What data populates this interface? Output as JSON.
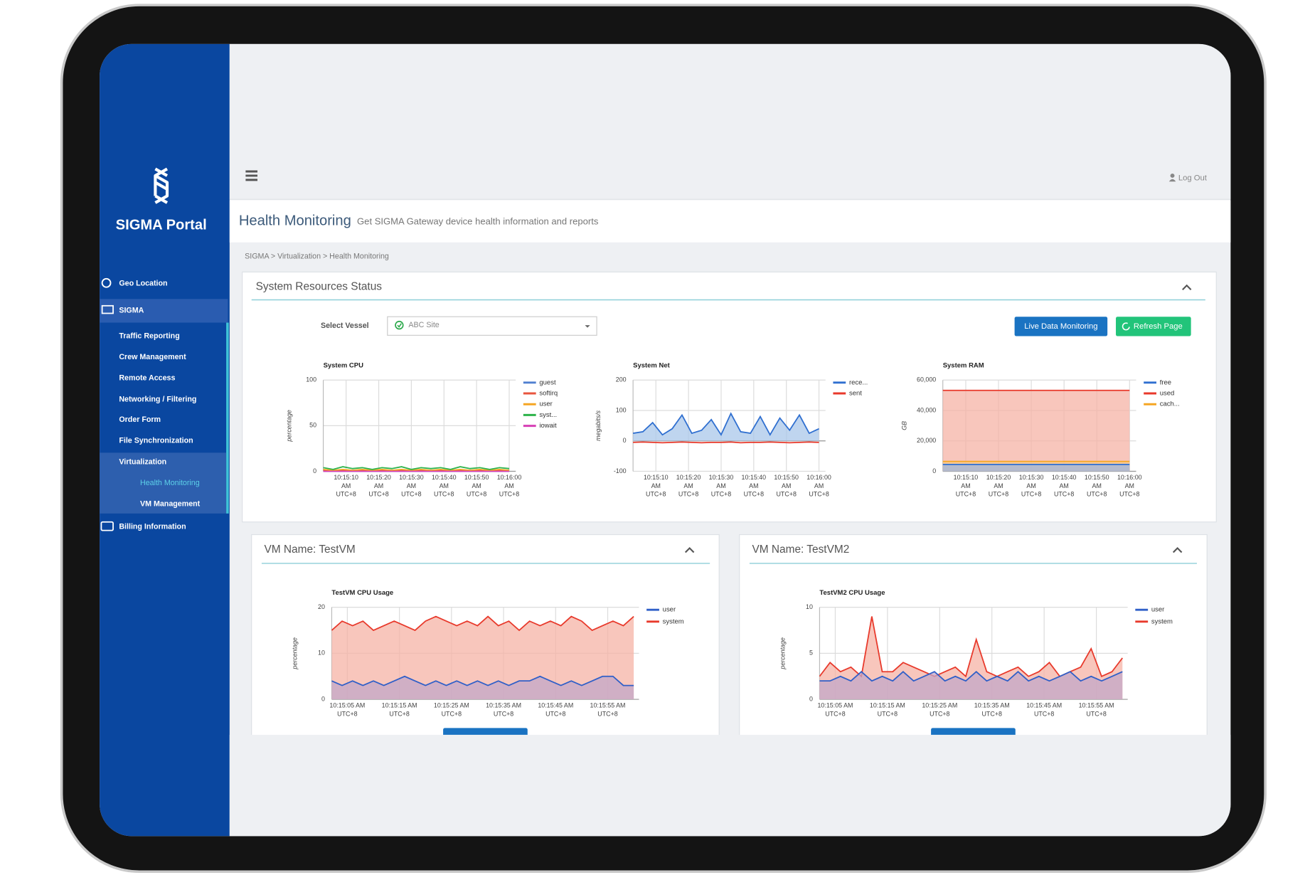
{
  "sidebar": {
    "brand": "SIGMA Portal",
    "menu": [
      "Geo Location",
      "SIGMA",
      "Traffic Reporting",
      "Crew Management",
      "Remote Access",
      "Networking / Filtering",
      "Order Form",
      "File Synchronization",
      "Virtualization",
      "Health Monitoring",
      "VM Management",
      "Billing Information"
    ]
  },
  "header": {
    "logout": "Log Out"
  },
  "page": {
    "title": "Health Monitoring",
    "subtitle": "Get SIGMA Gateway device health information and reports",
    "breadcrumb": "SIGMA > Virtualization > Health Monitoring"
  },
  "resources_panel": {
    "title": "System Resources Status",
    "select_label": "Select Vessel",
    "select_value": "ABC Site",
    "buttons": [
      "Live Data Monitoring",
      "Refresh Page"
    ]
  },
  "vm_panels": [
    {
      "title": "VM Name: TestVM"
    },
    {
      "title": "VM Name: TestVM2"
    }
  ],
  "charts": [
    {
      "type": "line",
      "title": "System CPU",
      "y_label": "percentage",
      "x": [
        0,
        3,
        6,
        9,
        12,
        15,
        18,
        21,
        24,
        27,
        30,
        33,
        36,
        39,
        42,
        45,
        48,
        51,
        54,
        57
      ],
      "xlim": [
        0,
        59
      ],
      "xticks": [
        {
          "value": 7,
          "label": "10:15:10\nAM\nUTC+8"
        },
        {
          "value": 17,
          "label": "10:15:20\nAM\nUTC+8"
        },
        {
          "value": 27,
          "label": "10:15:30\nAM\nUTC+8"
        },
        {
          "value": 37,
          "label": "10:15:40\nAM\nUTC+8"
        },
        {
          "value": 47,
          "label": "10:15:50\nAM\nUTC+8"
        },
        {
          "value": 57,
          "label": "10:16:00\nAM\nUTC+8"
        }
      ],
      "ylim": [
        0,
        100
      ],
      "yticks": [
        0,
        50,
        100
      ],
      "grid": true,
      "series": [
        {
          "name": "guest",
          "color": "#4f7fd0",
          "values": [
            0,
            0,
            0,
            0,
            0,
            0,
            0,
            0,
            0,
            0,
            0,
            0,
            0,
            0,
            0,
            0,
            0,
            0,
            0,
            0
          ]
        },
        {
          "name": "softirq",
          "color": "#e8553e",
          "values": [
            1,
            1,
            1,
            1,
            1,
            1,
            1,
            1,
            1,
            1,
            1,
            1,
            1,
            1,
            1,
            1,
            1,
            1,
            1,
            1
          ]
        },
        {
          "name": "user",
          "color": "#f5a623",
          "values": [
            2,
            1,
            2,
            1,
            2,
            1,
            2,
            1,
            2,
            1,
            2,
            1,
            2,
            1,
            2,
            1,
            2,
            1,
            2,
            1
          ]
        },
        {
          "name": "syst...",
          "color": "#2db34a",
          "values": [
            4,
            2,
            5,
            3,
            4,
            2,
            4,
            3,
            5,
            2,
            4,
            3,
            4,
            2,
            5,
            3,
            4,
            2,
            4,
            3
          ]
        },
        {
          "name": "iowait",
          "color": "#d63fb5",
          "values": [
            0,
            0,
            0,
            0,
            0,
            0,
            0,
            0,
            0,
            0,
            0,
            0,
            0,
            0,
            0,
            0,
            0,
            0,
            0,
            0
          ]
        }
      ]
    },
    {
      "type": "area",
      "title": "System Net",
      "y_label": "megabits/s",
      "x": [
        0,
        3,
        6,
        9,
        12,
        15,
        18,
        21,
        24,
        27,
        30,
        33,
        36,
        39,
        42,
        45,
        48,
        51,
        54,
        57
      ],
      "xlim": [
        0,
        59
      ],
      "xticks": [
        {
          "value": 7,
          "label": "10:15:10\nAM\nUTC+8"
        },
        {
          "value": 17,
          "label": "10:15:20\nAM\nUTC+8"
        },
        {
          "value": 27,
          "label": "10:15:30\nAM\nUTC+8"
        },
        {
          "value": 37,
          "label": "10:15:40\nAM\nUTC+8"
        },
        {
          "value": 47,
          "label": "10:15:50\nAM\nUTC+8"
        },
        {
          "value": 57,
          "label": "10:16:00\nAM\nUTC+8"
        }
      ],
      "ylim": [
        -100,
        200
      ],
      "yticks": [
        -100,
        0,
        100,
        200
      ],
      "grid": true,
      "series": [
        {
          "name": "rece...",
          "color": "#2f6fd0",
          "fill": "#a9c7ea",
          "values": [
            25,
            30,
            60,
            20,
            40,
            85,
            25,
            35,
            70,
            20,
            90,
            30,
            25,
            80,
            20,
            75,
            35,
            85,
            25,
            40
          ]
        },
        {
          "name": "sent",
          "color": "#e8392b",
          "values": [
            -5,
            -4,
            -5,
            -6,
            -5,
            -4,
            -5,
            -6,
            -5,
            -5,
            -4,
            -6,
            -5,
            -5,
            -4,
            -5,
            -6,
            -5,
            -4,
            -5
          ]
        }
      ]
    },
    {
      "type": "area",
      "title": "System RAM",
      "y_label": "GB",
      "x": [
        0,
        3,
        6,
        9,
        12,
        15,
        18,
        21,
        24,
        27,
        30,
        33,
        36,
        39,
        42,
        45,
        48,
        51,
        54,
        57
      ],
      "xlim": [
        0,
        59
      ],
      "xticks": [
        {
          "value": 7,
          "label": "10:15:10\nAM\nUTC+8"
        },
        {
          "value": 17,
          "label": "10:15:20\nAM\nUTC+8"
        },
        {
          "value": 27,
          "label": "10:15:30\nAM\nUTC+8"
        },
        {
          "value": 37,
          "label": "10:15:40\nAM\nUTC+8"
        },
        {
          "value": 47,
          "label": "10:15:50\nAM\nUTC+8"
        },
        {
          "value": 57,
          "label": "10:16:00\nAM\nUTC+8"
        }
      ],
      "ylim": [
        0,
        60000
      ],
      "yticks": [
        0,
        {
          "value": 20000,
          "label": "20,000"
        },
        {
          "value": 40000,
          "label": "40,000"
        },
        {
          "value": 60000,
          "label": "60,000"
        }
      ],
      "grid": true,
      "series": [
        {
          "name": "free",
          "color": "#2f6fd0",
          "fill": "#9db6e0",
          "values": [
            4500,
            4500,
            4500,
            4500,
            4500,
            4500,
            4500,
            4500,
            4500,
            4500,
            4500,
            4500,
            4500,
            4500,
            4500,
            4500,
            4500,
            4500,
            4500,
            4500
          ]
        },
        {
          "name": "used",
          "color": "#e8392b",
          "fill": "#f5b3a6",
          "values": [
            53200,
            53200,
            53200,
            53200,
            53200,
            53200,
            53200,
            53200,
            53200,
            53200,
            53200,
            53200,
            53200,
            53200,
            53200,
            53200,
            53200,
            53200,
            53200,
            53200
          ]
        },
        {
          "name": "cach...",
          "color": "#f5a623",
          "fill": "#f7c98a",
          "values": [
            6500,
            6500,
            6500,
            6500,
            6500,
            6500,
            6500,
            6500,
            6500,
            6500,
            6500,
            6500,
            6500,
            6500,
            6500,
            6500,
            6500,
            6500,
            6500,
            6500
          ]
        }
      ]
    },
    {
      "type": "area",
      "title": "TestVM CPU Usage",
      "y_label": "percentage",
      "x": [
        0,
        2,
        4,
        6,
        8,
        10,
        12,
        14,
        16,
        18,
        20,
        22,
        24,
        26,
        28,
        30,
        32,
        34,
        36,
        38,
        40,
        42,
        44,
        46,
        48,
        50,
        52,
        54,
        56,
        58
      ],
      "xlim": [
        0,
        59
      ],
      "xticks": [
        {
          "value": 3,
          "label": "10:15:05 AM\nUTC+8"
        },
        {
          "value": 13,
          "label": "10:15:15 AM\nUTC+8"
        },
        {
          "value": 23,
          "label": "10:15:25 AM\nUTC+8"
        },
        {
          "value": 33,
          "label": "10:15:35 AM\nUTC+8"
        },
        {
          "value": 43,
          "label": "10:15:45 AM\nUTC+8"
        },
        {
          "value": 53,
          "label": "10:15:55 AM\nUTC+8"
        }
      ],
      "ylim": [
        0,
        20
      ],
      "yticks": [
        0,
        10,
        20
      ],
      "grid": true,
      "series": [
        {
          "name": "user",
          "color": "#2f5fc8",
          "fill": "#c3a7c8",
          "values": [
            4,
            3,
            4,
            3,
            4,
            3,
            4,
            5,
            4,
            3,
            4,
            3,
            4,
            3,
            4,
            3,
            4,
            3,
            4,
            4,
            5,
            4,
            3,
            4,
            3,
            4,
            5,
            5,
            3,
            3
          ]
        },
        {
          "name": "system",
          "color": "#e8392b",
          "fill": "#f5b3a6",
          "values": [
            15,
            17,
            16,
            17,
            15,
            16,
            17,
            16,
            15,
            17,
            18,
            17,
            16,
            17,
            16,
            18,
            16,
            17,
            15,
            17,
            16,
            17,
            16,
            18,
            17,
            15,
            16,
            17,
            16,
            18
          ]
        }
      ]
    },
    {
      "type": "area",
      "title": "TestVM2 CPU Usage",
      "y_label": "percentage",
      "x": [
        0,
        2,
        4,
        6,
        8,
        10,
        12,
        14,
        16,
        18,
        20,
        22,
        24,
        26,
        28,
        30,
        32,
        34,
        36,
        38,
        40,
        42,
        44,
        46,
        48,
        50,
        52,
        54,
        56,
        58
      ],
      "xlim": [
        0,
        59
      ],
      "xticks": [
        {
          "value": 3,
          "label": "10:15:05 AM\nUTC+8"
        },
        {
          "value": 13,
          "label": "10:15:15 AM\nUTC+8"
        },
        {
          "value": 23,
          "label": "10:15:25 AM\nUTC+8"
        },
        {
          "value": 33,
          "label": "10:15:35 AM\nUTC+8"
        },
        {
          "value": 43,
          "label": "10:15:45 AM\nUTC+8"
        },
        {
          "value": 53,
          "label": "10:15:55 AM\nUTC+8"
        }
      ],
      "ylim": [
        0,
        10
      ],
      "yticks": [
        0,
        5,
        10
      ],
      "grid": true,
      "series": [
        {
          "name": "user",
          "color": "#2f5fc8",
          "fill": "#c3a7c8",
          "values": [
            2,
            2,
            2.5,
            2,
            3,
            2,
            2.5,
            2,
            3,
            2,
            2.5,
            3,
            2,
            2.5,
            2,
            3,
            2,
            2.5,
            2,
            3,
            2,
            2.5,
            2,
            2.5,
            3,
            2,
            2.5,
            2,
            2.5,
            3
          ]
        },
        {
          "name": "system",
          "color": "#e8392b",
          "fill": "#f5b3a6",
          "values": [
            2.5,
            4,
            3,
            3.5,
            2.5,
            9,
            3,
            3,
            4,
            3.5,
            3,
            2.5,
            3,
            3.5,
            2.5,
            6.5,
            3,
            2.5,
            3,
            3.5,
            2.5,
            3,
            4,
            2.5,
            3,
            3.5,
            5.5,
            2.5,
            3,
            4.5
          ]
        }
      ]
    }
  ]
}
